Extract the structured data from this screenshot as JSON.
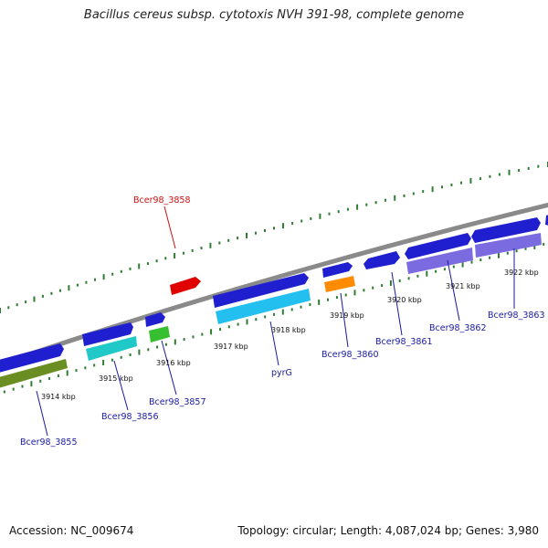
{
  "title": "Bacillus cereus subsp. cytotoxis NVH 391-98, complete genome",
  "footer": {
    "accession": "Accession: NC_009674",
    "topology": "Topology: circular; Length: 4,087,024 bp; Genes: 3,980"
  },
  "colors": {
    "backbone": "#8a8a8a",
    "ticks": "#2e7d32",
    "cds_forward": "#1a1acc",
    "cds_reverse_dark": "#4a4aa8",
    "gene_label": "#1a1aa0",
    "highlight_label": "#cc1010"
  },
  "kbp_labels": [
    "3914 kbp",
    "3915 kbp",
    "3916 kbp",
    "3917 kbp",
    "3918 kbp",
    "3919 kbp",
    "3920 kbp",
    "3921 kbp",
    "3922 kbp"
  ],
  "gene_labels": [
    {
      "text": "Bcer98_3855",
      "color": "#1a1aa0"
    },
    {
      "text": "Bcer98_3856",
      "color": "#1a1aa0"
    },
    {
      "text": "Bcer98_3857",
      "color": "#1a1aa0"
    },
    {
      "text": "pyrG",
      "color": "#1a1aa0"
    },
    {
      "text": "Bcer98_3860",
      "color": "#1a1aa0"
    },
    {
      "text": "Bcer98_3861",
      "color": "#1a1aa0"
    },
    {
      "text": "Bcer98_3862",
      "color": "#1a1aa0"
    },
    {
      "text": "Bcer98_3863",
      "color": "#1a1aa0"
    },
    {
      "text": "Bcer98_3858",
      "color": "#cc1010"
    }
  ]
}
